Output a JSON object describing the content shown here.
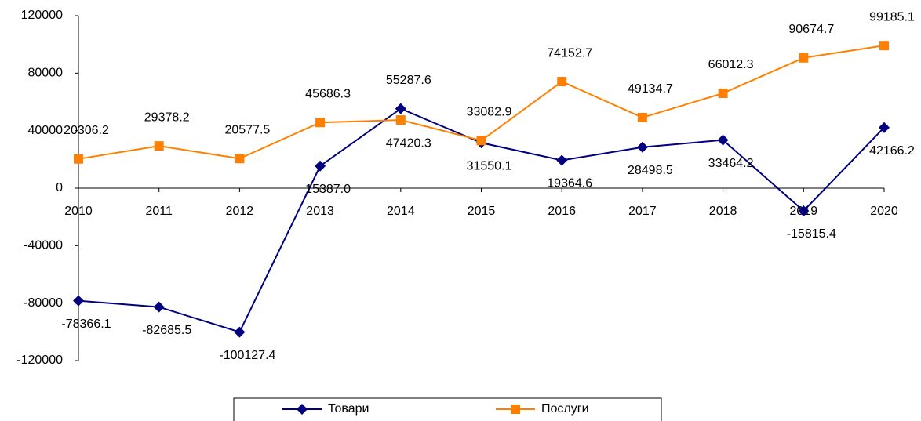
{
  "chart_data": {
    "type": "line",
    "categories": [
      "2010",
      "2011",
      "2012",
      "2013",
      "2014",
      "2015",
      "2016",
      "2017",
      "2018",
      "2019",
      "2020"
    ],
    "series": [
      {
        "name": "Товари",
        "color": "#000080",
        "marker": "diamond",
        "values": [
          -78366.1,
          -82685.5,
          -100127.4,
          15387.0,
          55287.6,
          31550.1,
          19364.6,
          28498.5,
          33464.2,
          -15815.4,
          42166.2
        ],
        "value_labels": [
          "-78366.1",
          "-82685.5",
          "-100127.4",
          "15387.0",
          "55287.6",
          "31550.1",
          "19364.6",
          "28498.5",
          "33464.2",
          "-15815.4",
          "42166.2"
        ]
      },
      {
        "name": "Послуги",
        "color": "#ff8000",
        "marker": "square",
        "values": [
          20306.2,
          29378.2,
          20577.5,
          45686.3,
          47420.3,
          33082.9,
          74152.7,
          49134.7,
          66012.3,
          90674.7,
          99185.1
        ],
        "value_labels": [
          "20306.2",
          "29378.2",
          "20577.5",
          "45686.3",
          "47420.3",
          "33082.9",
          "74152.7",
          "49134.7",
          "66012.3",
          "90674.7",
          "99185.1"
        ]
      }
    ],
    "ylim": [
      -120000,
      120000
    ],
    "yticks": [
      -120000,
      -80000,
      -40000,
      0,
      40000,
      80000,
      120000
    ],
    "legend": "bottom"
  }
}
